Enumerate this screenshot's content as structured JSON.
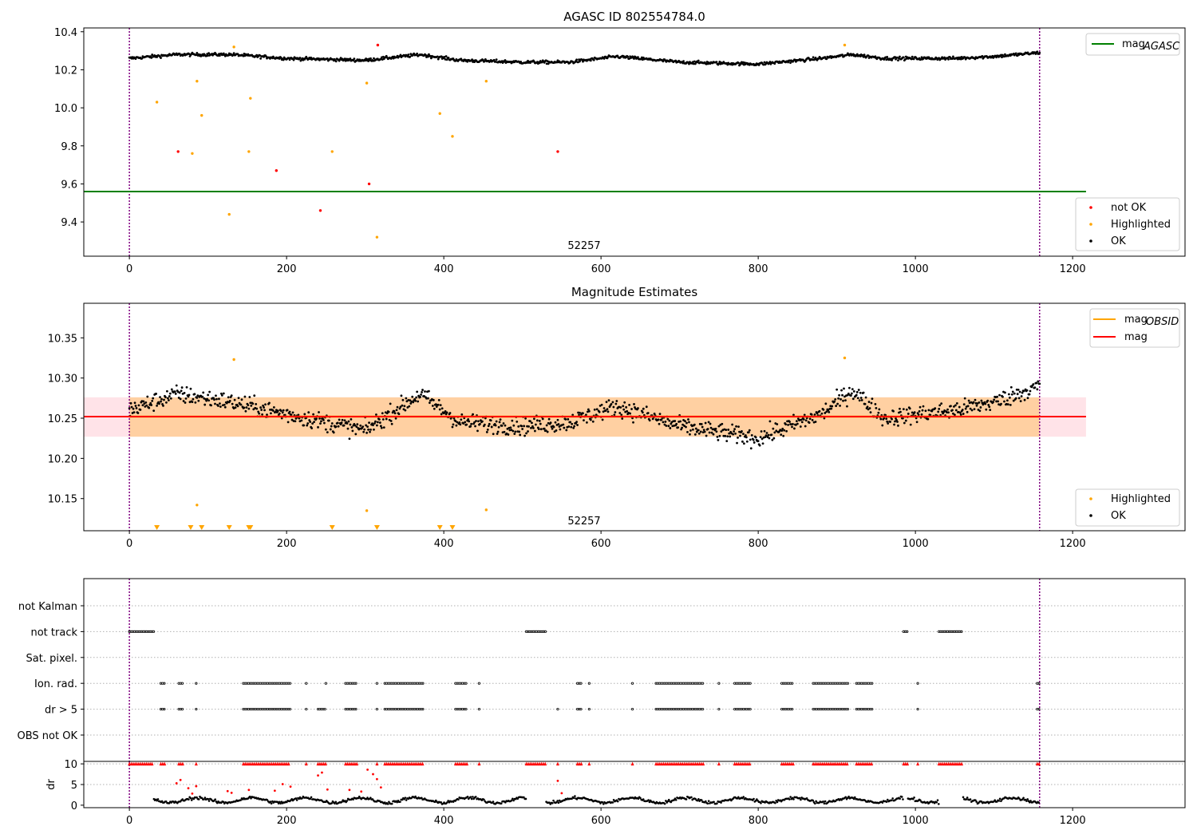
{
  "chart_data": [
    {
      "type": "scatter",
      "title": "AGASC ID 802554784.0",
      "xlim": [
        -58,
        1343
      ],
      "ylim": [
        9.22,
        10.42
      ],
      "xticks": [
        "0",
        "200",
        "400",
        "600",
        "800",
        "1000",
        "1200"
      ],
      "yticks": [
        "9.4",
        "9.6",
        "9.8",
        "10.0",
        "10.2",
        "10.4"
      ],
      "obs_boundaries": [
        0,
        1158
      ],
      "obsid_label": "52257",
      "hline": {
        "name": "mag_AGASC",
        "label_main": "mag",
        "label_sub": "AGASC",
        "value": 9.56,
        "x_range": [
          -58,
          1217
        ],
        "color": "#008000"
      },
      "legend_lines": [
        {
          "label_main": "mag",
          "label_sub": "AGASC",
          "color": "#008000"
        }
      ],
      "legend_markers": [
        {
          "label": "not OK",
          "color": "#ff0000"
        },
        {
          "label": "Highlighted",
          "color": "#ffa500"
        },
        {
          "label": "OK",
          "color": "#000000"
        }
      ],
      "series": [
        {
          "name": "OK",
          "color": "#000000",
          "trend": [
            [
              0,
              10.26
            ],
            [
              60,
              10.28
            ],
            [
              130,
              10.28
            ],
            [
              200,
              10.26
            ],
            [
              300,
              10.25
            ],
            [
              370,
              10.28
            ],
            [
              420,
              10.25
            ],
            [
              500,
              10.24
            ],
            [
              560,
              10.24
            ],
            [
              620,
              10.27
            ],
            [
              700,
              10.24
            ],
            [
              800,
              10.23
            ],
            [
              880,
              10.26
            ],
            [
              920,
              10.28
            ],
            [
              960,
              10.26
            ],
            [
              1050,
              10.26
            ],
            [
              1100,
              10.27
            ],
            [
              1158,
              10.29
            ]
          ],
          "spread": 0.015
        },
        {
          "name": "Highlighted",
          "color": "#ffa500",
          "points": [
            [
              35,
              10.03
            ],
            [
              80,
              9.76
            ],
            [
              86,
              10.14
            ],
            [
              92,
              9.96
            ],
            [
              127,
              9.44
            ],
            [
              133,
              10.32
            ],
            [
              152,
              9.77
            ],
            [
              154,
              10.05
            ],
            [
              258,
              9.77
            ],
            [
              302,
              10.13
            ],
            [
              315,
              9.32
            ],
            [
              395,
              9.97
            ],
            [
              411,
              9.85
            ],
            [
              454,
              10.14
            ],
            [
              910,
              10.33
            ]
          ]
        },
        {
          "name": "not OK",
          "color": "#ff0000",
          "points": [
            [
              62,
              9.77
            ],
            [
              187,
              9.67
            ],
            [
              243,
              9.46
            ],
            [
              305,
              9.6
            ],
            [
              316,
              10.33
            ],
            [
              545,
              9.77
            ]
          ]
        }
      ]
    },
    {
      "type": "scatter",
      "title": "Magnitude Estimates",
      "xlim": [
        -58,
        1343
      ],
      "ylim": [
        10.11,
        10.393
      ],
      "xticks": [
        "0",
        "200",
        "400",
        "600",
        "800",
        "1000",
        "1200"
      ],
      "yticks": [
        "10.15",
        "10.20",
        "10.25",
        "10.30",
        "10.35"
      ],
      "obs_boundaries": [
        0,
        1158
      ],
      "obsid_label": "52257",
      "mag": {
        "value": 10.252,
        "band": [
          10.227,
          10.276
        ],
        "x_range": [
          -58,
          1217
        ]
      },
      "mag_obsid": {
        "value": 10.252,
        "band": [
          10.227,
          10.276
        ],
        "x_range": [
          0,
          1158
        ]
      },
      "legend_lines": [
        {
          "label_main": "mag",
          "label_sub": "OBSID",
          "color": "#ffa500"
        },
        {
          "label_main": "mag",
          "label_sub": "",
          "color": "#ff0000"
        }
      ],
      "legend_markers": [
        {
          "label": "Highlighted",
          "color": "#ffa500"
        },
        {
          "label": "OK",
          "color": "#000000"
        }
      ],
      "series": [
        {
          "name": "OK",
          "color": "#000000",
          "trend": [
            [
              0,
              10.26
            ],
            [
              60,
              10.28
            ],
            [
              130,
              10.27
            ],
            [
              200,
              10.255
            ],
            [
              300,
              10.235
            ],
            [
              370,
              10.28
            ],
            [
              420,
              10.245
            ],
            [
              500,
              10.24
            ],
            [
              560,
              10.245
            ],
            [
              620,
              10.265
            ],
            [
              700,
              10.24
            ],
            [
              800,
              10.225
            ],
            [
              880,
              10.255
            ],
            [
              920,
              10.285
            ],
            [
              960,
              10.25
            ],
            [
              1050,
              10.26
            ],
            [
              1100,
              10.27
            ],
            [
              1158,
              10.29
            ]
          ],
          "spread": 0.02
        },
        {
          "name": "Highlighted",
          "color": "#ffa500",
          "points": [
            [
              86,
              10.142
            ],
            [
              133,
              10.323
            ],
            [
              302,
              10.135
            ],
            [
              454,
              10.136
            ],
            [
              910,
              10.325
            ]
          ]
        }
      ],
      "offscale_markers_x": [
        35,
        78,
        92,
        127,
        152,
        154,
        258,
        315,
        395,
        411
      ]
    },
    {
      "type": "scatter",
      "title": "",
      "xlim": [
        -58,
        1343
      ],
      "ylim": [
        0,
        6.4
      ],
      "xticks": [
        "0",
        "200",
        "400",
        "600",
        "800",
        "1000",
        "1200"
      ],
      "obs_boundaries": [
        0,
        1158
      ],
      "flag_rows": [
        "not Kalman",
        "not track",
        "Sat. pixel.",
        "Ion. rad.",
        "dr > 5",
        "OBS not OK"
      ],
      "flag_ranges": [
        {
          "flag": "not track",
          "ranges": [
            [
              0,
              32
            ],
            [
              505,
              530
            ],
            [
              985,
              990
            ],
            [
              1030,
              1060
            ]
          ]
        },
        {
          "flag": "Ion. rad.",
          "ranges": [
            [
              40,
              45
            ],
            [
              63,
              68
            ],
            [
              85,
              86
            ],
            [
              145,
              205
            ],
            [
              225,
              226
            ],
            [
              250,
              251
            ],
            [
              275,
              290
            ],
            [
              315,
              316
            ],
            [
              325,
              375
            ],
            [
              415,
              430
            ],
            [
              445,
              446
            ],
            [
              570,
              575
            ],
            [
              585,
              586
            ],
            [
              640,
              641
            ],
            [
              670,
              730
            ],
            [
              750,
              751
            ],
            [
              770,
              790
            ],
            [
              830,
              845
            ],
            [
              870,
              915
            ],
            [
              925,
              945
            ],
            [
              1003,
              1004
            ],
            [
              1155,
              1159
            ]
          ]
        },
        {
          "flag": "dr > 5",
          "ranges": [
            [
              40,
              45
            ],
            [
              63,
              68
            ],
            [
              85,
              86
            ],
            [
              145,
              205
            ],
            [
              225,
              226
            ],
            [
              240,
              250
            ],
            [
              275,
              290
            ],
            [
              315,
              316
            ],
            [
              325,
              375
            ],
            [
              415,
              430
            ],
            [
              445,
              446
            ],
            [
              545,
              546
            ],
            [
              570,
              575
            ],
            [
              585,
              586
            ],
            [
              640,
              641
            ],
            [
              670,
              730
            ],
            [
              750,
              751
            ],
            [
              770,
              790
            ],
            [
              830,
              845
            ],
            [
              870,
              915
            ],
            [
              925,
              945
            ],
            [
              1003,
              1004
            ],
            [
              1155,
              1159
            ]
          ]
        }
      ],
      "ylabel": "dr",
      "dr_yticks": [
        "0",
        "5",
        "10"
      ],
      "dr_ylim": [
        -0.6,
        10.6
      ],
      "dr_series": {
        "name": "OK",
        "color": "#000000",
        "level": 1.2,
        "spread": 0.8
      },
      "dr_not_ok": {
        "name": "not OK",
        "color": "#ff0000",
        "points": [
          [
            60,
            5.3
          ],
          [
            65,
            6.1
          ],
          [
            75,
            4.1
          ],
          [
            80,
            2.8
          ],
          [
            85,
            4.6
          ],
          [
            125,
            3.4
          ],
          [
            130,
            3.0
          ],
          [
            152,
            3.7
          ],
          [
            185,
            3.5
          ],
          [
            195,
            5.1
          ],
          [
            205,
            4.5
          ],
          [
            240,
            7.2
          ],
          [
            245,
            7.9
          ],
          [
            252,
            3.8
          ],
          [
            280,
            3.7
          ],
          [
            295,
            3.3
          ],
          [
            303,
            8.6
          ],
          [
            310,
            7.5
          ],
          [
            315,
            6.3
          ],
          [
            320,
            4.3
          ],
          [
            545,
            5.9
          ],
          [
            550,
            2.9
          ]
        ]
      }
    }
  ]
}
